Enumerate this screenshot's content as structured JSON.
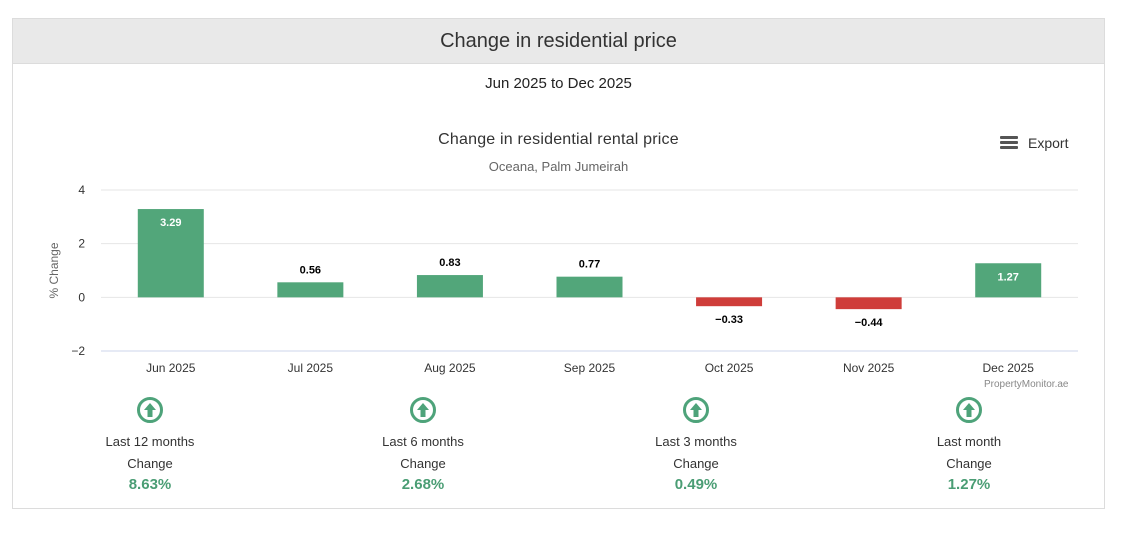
{
  "header": {
    "title": "Change in residential price"
  },
  "date_range": "Jun 2025 to Dec 2025",
  "export_label": "Export",
  "credit": "PropertyMonitor.ae",
  "colors": {
    "positive": "#52a67a",
    "negative": "#cf3d3a",
    "accent": "#4a9d74"
  },
  "chart_data": {
    "type": "bar",
    "title": "Change in residential rental price",
    "subtitle": "Oceana, Palm Jumeirah",
    "ylabel": "% Change",
    "xlabel": "",
    "ylim": [
      -2,
      4
    ],
    "yticks": [
      4,
      2,
      0,
      -2
    ],
    "ytick_labels": [
      "4",
      "2",
      "0",
      "−2"
    ],
    "categories": [
      "Jun 2025",
      "Jul 2025",
      "Aug 2025",
      "Sep 2025",
      "Oct 2025",
      "Nov 2025",
      "Dec 2025"
    ],
    "values": [
      3.29,
      0.56,
      0.83,
      0.77,
      -0.33,
      -0.44,
      1.27
    ],
    "data_labels": [
      "3.29",
      "0.56",
      "0.83",
      "0.77",
      "−0.33",
      "−0.44",
      "1.27"
    ],
    "grid": true,
    "legend": "none"
  },
  "stats": [
    {
      "period": "Last 12 months",
      "label": "Change",
      "value": "8.63%"
    },
    {
      "period": "Last 6 months",
      "label": "Change",
      "value": "2.68%"
    },
    {
      "period": "Last 3 months",
      "label": "Change",
      "value": "0.49%"
    },
    {
      "period": "Last month",
      "label": "Change",
      "value": "1.27%"
    }
  ]
}
